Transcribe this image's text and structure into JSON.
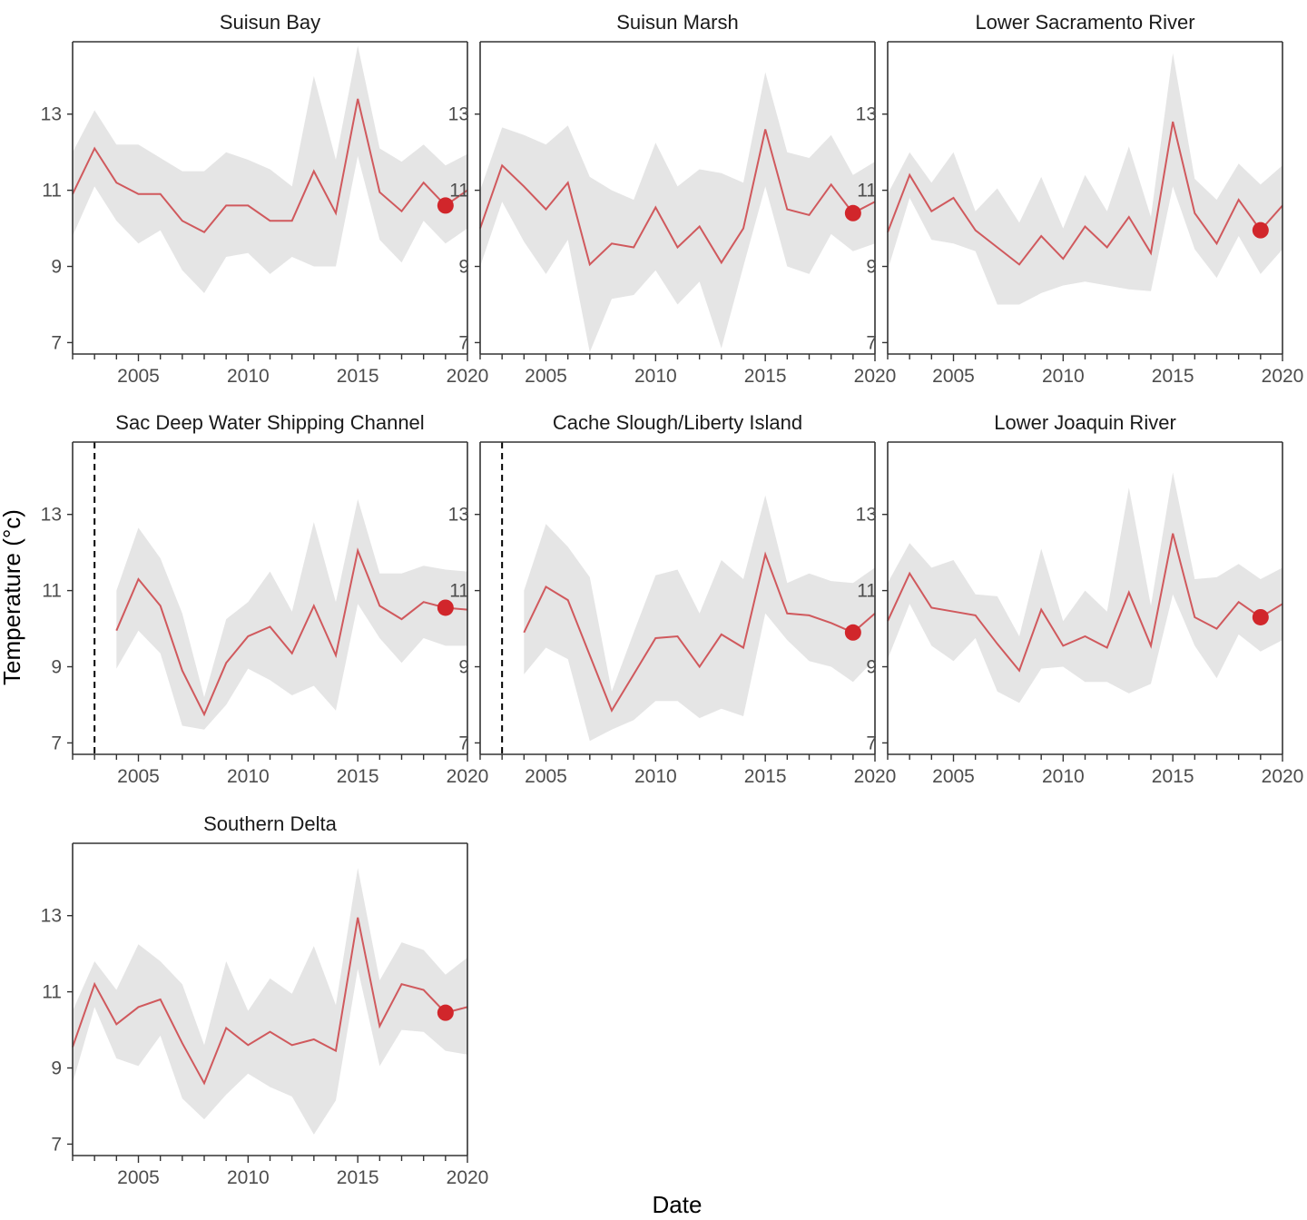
{
  "figure": {
    "xlabel": "Date",
    "ylabel": "Temperature (°c)"
  },
  "style": {
    "ribbon_color": "#e5e5e5",
    "line_color": "#d0595d",
    "point_color": "#d1262b",
    "frame_color": "#333333",
    "vline_color": "#000000"
  },
  "chart_data": [
    {
      "type": "line",
      "title": "Suisun Bay",
      "xlim": [
        2002,
        2020
      ],
      "ylim": [
        6.7,
        14.9
      ],
      "xticks": [
        2005,
        2010,
        2015,
        2020
      ],
      "yticks": [
        7,
        9,
        11,
        13
      ],
      "x": [
        2002,
        2003,
        2004,
        2005,
        2006,
        2007,
        2008,
        2009,
        2010,
        2011,
        2012,
        2013,
        2014,
        2015,
        2016,
        2017,
        2018,
        2019,
        2020
      ],
      "series": [
        {
          "mean": [
            10.9,
            12.1,
            11.2,
            10.9,
            10.9,
            10.2,
            9.9,
            10.6,
            10.6,
            10.2,
            10.2,
            11.5,
            10.4,
            13.4,
            10.95,
            10.45,
            11.2,
            10.6,
            11.0
          ],
          "lower": [
            9.8,
            11.1,
            10.2,
            9.6,
            9.95,
            8.9,
            8.3,
            9.25,
            9.35,
            8.8,
            9.25,
            9.0,
            9.0,
            11.9,
            9.7,
            9.1,
            10.2,
            9.6,
            10.0
          ],
          "upper": [
            12.0,
            13.1,
            12.2,
            12.2,
            11.85,
            11.5,
            11.5,
            12.0,
            11.8,
            11.55,
            11.1,
            14.0,
            11.8,
            14.8,
            12.1,
            11.75,
            12.2,
            11.65,
            11.95
          ]
        }
      ],
      "highlight": {
        "x": 2019,
        "y": 10.6
      },
      "vline": null
    },
    {
      "type": "line",
      "title": "Suisun Marsh",
      "xlim": [
        2002,
        2020
      ],
      "ylim": [
        6.7,
        14.9
      ],
      "xticks": [
        2005,
        2010,
        2015,
        2020
      ],
      "yticks": [
        7,
        9,
        11,
        13
      ],
      "x": [
        2002,
        2003,
        2004,
        2005,
        2006,
        2007,
        2008,
        2009,
        2010,
        2011,
        2012,
        2013,
        2014,
        2015,
        2016,
        2017,
        2018,
        2019,
        2020
      ],
      "series": [
        {
          "mean": [
            10.0,
            11.65,
            11.1,
            10.5,
            11.2,
            9.05,
            9.6,
            9.5,
            10.55,
            9.5,
            10.05,
            9.1,
            10.0,
            12.6,
            10.5,
            10.35,
            11.15,
            10.4,
            10.7
          ],
          "lower": [
            9.0,
            10.7,
            9.65,
            8.8,
            9.7,
            6.75,
            8.15,
            8.25,
            8.9,
            8.0,
            8.6,
            6.85,
            9.0,
            11.1,
            9.0,
            8.8,
            9.85,
            9.4,
            9.6
          ],
          "upper": [
            11.0,
            12.65,
            12.45,
            12.2,
            12.7,
            11.35,
            11.0,
            10.75,
            12.25,
            11.1,
            11.55,
            11.45,
            11.2,
            14.1,
            12.0,
            11.85,
            12.45,
            11.4,
            11.75
          ]
        }
      ],
      "highlight": {
        "x": 2019,
        "y": 10.4
      },
      "vline": null
    },
    {
      "type": "line",
      "title": "Lower Sacramento River",
      "xlim": [
        2002,
        2020
      ],
      "ylim": [
        6.7,
        14.9
      ],
      "xticks": [
        2005,
        2010,
        2015,
        2020
      ],
      "yticks": [
        7,
        9,
        11,
        13
      ],
      "x": [
        2002,
        2003,
        2004,
        2005,
        2006,
        2007,
        2008,
        2009,
        2010,
        2011,
        2012,
        2013,
        2014,
        2015,
        2016,
        2017,
        2018,
        2019,
        2020
      ],
      "series": [
        {
          "mean": [
            9.9,
            11.4,
            10.45,
            10.8,
            9.95,
            9.5,
            9.05,
            9.8,
            9.2,
            10.05,
            9.5,
            10.3,
            9.35,
            12.8,
            10.4,
            9.6,
            10.75,
            9.95,
            10.6
          ],
          "lower": [
            8.9,
            10.8,
            9.7,
            9.6,
            9.4,
            8.0,
            8.0,
            8.3,
            8.5,
            8.6,
            8.5,
            8.4,
            8.35,
            11.1,
            9.45,
            8.7,
            9.8,
            8.8,
            9.45
          ],
          "upper": [
            10.9,
            12.0,
            11.2,
            12.0,
            10.45,
            11.05,
            10.15,
            11.35,
            10.0,
            11.4,
            10.45,
            12.15,
            10.3,
            14.6,
            11.3,
            10.75,
            11.7,
            11.15,
            11.65
          ]
        }
      ],
      "highlight": {
        "x": 2019,
        "y": 9.95
      },
      "vline": null
    },
    {
      "type": "line",
      "title": "Sac Deep Water Shipping Channel",
      "xlim": [
        2002,
        2020
      ],
      "ylim": [
        6.7,
        14.9
      ],
      "xticks": [
        2005,
        2010,
        2015,
        2020
      ],
      "yticks": [
        7,
        9,
        11,
        13
      ],
      "x": [
        2004,
        2005,
        2006,
        2007,
        2008,
        2009,
        2010,
        2011,
        2012,
        2013,
        2014,
        2015,
        2016,
        2017,
        2018,
        2019,
        2020
      ],
      "series": [
        {
          "mean": [
            9.95,
            11.3,
            10.6,
            8.9,
            7.75,
            9.1,
            9.8,
            10.05,
            9.35,
            10.6,
            9.3,
            12.05,
            10.6,
            10.25,
            10.7,
            10.55,
            10.5
          ],
          "lower": [
            8.95,
            9.95,
            9.35,
            7.45,
            7.35,
            8.0,
            8.95,
            8.65,
            8.25,
            8.5,
            7.85,
            10.65,
            9.75,
            9.1,
            9.75,
            9.55,
            9.55
          ],
          "upper": [
            11.0,
            12.65,
            11.85,
            10.4,
            8.2,
            10.25,
            10.7,
            11.5,
            10.45,
            12.8,
            10.7,
            13.4,
            11.45,
            11.45,
            11.65,
            11.55,
            11.5
          ]
        }
      ],
      "highlight": {
        "x": 2019,
        "y": 10.55
      },
      "vline": {
        "x": 2003
      }
    },
    {
      "type": "line",
      "title": "Cache Slough/Liberty Island",
      "xlim": [
        2002,
        2020
      ],
      "ylim": [
        6.7,
        14.9
      ],
      "xticks": [
        2005,
        2010,
        2015,
        2020
      ],
      "yticks": [
        7,
        9,
        11,
        13
      ],
      "x": [
        2004,
        2005,
        2006,
        2007,
        2008,
        2009,
        2010,
        2011,
        2012,
        2013,
        2014,
        2015,
        2016,
        2017,
        2018,
        2019,
        2020
      ],
      "series": [
        {
          "mean": [
            9.9,
            11.1,
            10.75,
            9.3,
            7.85,
            8.8,
            9.75,
            9.8,
            9.0,
            9.85,
            9.5,
            11.95,
            10.4,
            10.35,
            10.15,
            9.9,
            10.4
          ],
          "lower": [
            8.8,
            9.5,
            9.2,
            7.05,
            7.35,
            7.6,
            8.1,
            8.1,
            7.65,
            7.9,
            7.7,
            10.4,
            9.7,
            9.15,
            9.0,
            8.6,
            9.2
          ],
          "upper": [
            11.0,
            12.75,
            12.15,
            11.35,
            8.35,
            9.9,
            11.4,
            11.55,
            10.4,
            11.8,
            11.3,
            13.5,
            11.2,
            11.45,
            11.25,
            11.2,
            11.6
          ]
        }
      ],
      "highlight": {
        "x": 2019,
        "y": 9.9
      },
      "vline": {
        "x": 2003
      }
    },
    {
      "type": "line",
      "title": "Lower Joaquin River",
      "xlim": [
        2002,
        2020
      ],
      "ylim": [
        6.7,
        14.9
      ],
      "xticks": [
        2005,
        2010,
        2015,
        2020
      ],
      "yticks": [
        7,
        9,
        11,
        13
      ],
      "x": [
        2002,
        2003,
        2004,
        2005,
        2006,
        2007,
        2008,
        2009,
        2010,
        2011,
        2012,
        2013,
        2014,
        2015,
        2016,
        2017,
        2018,
        2019,
        2020
      ],
      "series": [
        {
          "mean": [
            10.2,
            11.45,
            10.55,
            10.45,
            10.35,
            9.6,
            8.9,
            10.5,
            9.55,
            9.8,
            9.5,
            10.95,
            9.55,
            12.5,
            10.3,
            10.0,
            10.7,
            10.3,
            10.65
          ],
          "lower": [
            9.2,
            10.65,
            9.55,
            9.15,
            9.75,
            8.35,
            8.05,
            8.95,
            9.0,
            8.6,
            8.6,
            8.3,
            8.55,
            10.9,
            9.55,
            8.7,
            9.85,
            9.4,
            9.7
          ],
          "upper": [
            11.2,
            12.25,
            11.6,
            11.8,
            10.9,
            10.85,
            9.8,
            12.1,
            10.2,
            11.0,
            10.45,
            13.7,
            10.6,
            14.1,
            11.3,
            11.35,
            11.7,
            11.3,
            11.6
          ]
        }
      ],
      "highlight": {
        "x": 2019,
        "y": 10.3
      },
      "vline": null
    },
    {
      "type": "line",
      "title": "Southern Delta",
      "xlim": [
        2002,
        2020
      ],
      "ylim": [
        6.7,
        14.9
      ],
      "xticks": [
        2005,
        2010,
        2015,
        2020
      ],
      "yticks": [
        7,
        9,
        11,
        13
      ],
      "x": [
        2002,
        2003,
        2004,
        2005,
        2006,
        2007,
        2008,
        2009,
        2010,
        2011,
        2012,
        2013,
        2014,
        2015,
        2016,
        2017,
        2018,
        2019,
        2020
      ],
      "series": [
        {
          "mean": [
            9.55,
            11.2,
            10.15,
            10.6,
            10.8,
            9.65,
            8.6,
            10.05,
            9.6,
            9.95,
            9.6,
            9.75,
            9.45,
            12.95,
            10.1,
            11.2,
            11.05,
            10.45,
            10.6
          ],
          "lower": [
            8.6,
            10.6,
            9.25,
            9.05,
            9.85,
            8.2,
            7.65,
            8.3,
            8.85,
            8.5,
            8.25,
            7.25,
            8.15,
            11.6,
            9.05,
            10.0,
            9.95,
            9.45,
            9.35
          ],
          "upper": [
            10.5,
            11.8,
            11.05,
            12.25,
            11.8,
            11.2,
            9.6,
            11.8,
            10.5,
            11.35,
            10.95,
            12.2,
            10.65,
            14.25,
            11.3,
            12.3,
            12.1,
            11.45,
            11.9
          ]
        }
      ],
      "highlight": {
        "x": 2019,
        "y": 10.45
      },
      "vline": null
    }
  ]
}
